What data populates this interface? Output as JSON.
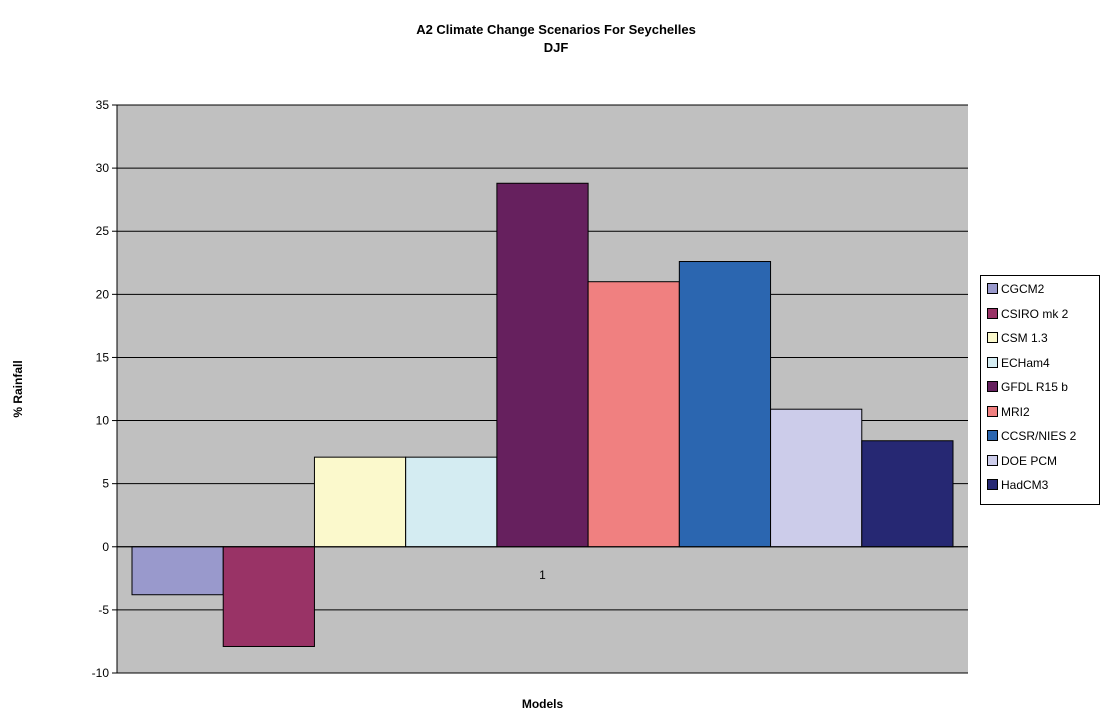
{
  "chart_data": {
    "type": "bar",
    "title": "A2 Climate Change Scenarios For Seychelles",
    "subtitle": "DJF",
    "xlabel": "Models",
    "ylabel": "% Rainfall",
    "categories": [
      "1"
    ],
    "ylim": [
      -10,
      35
    ],
    "yticks": [
      -10,
      -5,
      0,
      5,
      10,
      15,
      20,
      25,
      30,
      35
    ],
    "grid": true,
    "legend_position": "right",
    "series": [
      {
        "name": "CGCM2",
        "values": [
          -3.8
        ],
        "color": "#9999cc"
      },
      {
        "name": "CSIRO mk 2",
        "values": [
          -7.9
        ],
        "color": "#993366"
      },
      {
        "name": "CSM 1.3",
        "values": [
          7.1
        ],
        "color": "#fbf9cc"
      },
      {
        "name": "ECHam4",
        "values": [
          7.1
        ],
        "color": "#d4ecf2"
      },
      {
        "name": "GFDL R15 b",
        "values": [
          28.8
        ],
        "color": "#66205e"
      },
      {
        "name": "MRI2",
        "values": [
          21.0
        ],
        "color": "#f08080"
      },
      {
        "name": "CCSR/NIES 2",
        "values": [
          22.6
        ],
        "color": "#2b66b0"
      },
      {
        "name": "DOE PCM",
        "values": [
          10.9
        ],
        "color": "#ccccea"
      },
      {
        "name": "HadCM3",
        "values": [
          8.4
        ],
        "color": "#262873"
      }
    ]
  }
}
